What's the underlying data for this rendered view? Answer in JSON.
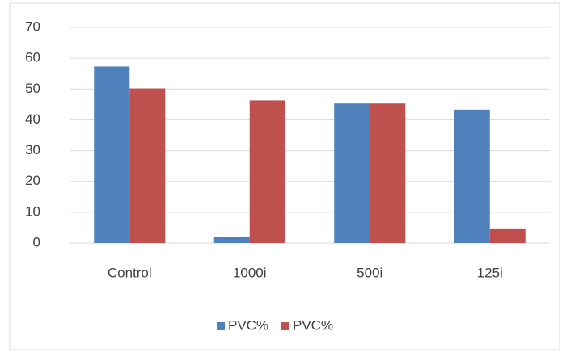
{
  "chart_data": {
    "type": "bar",
    "categories": [
      "Control",
      "1000i",
      "500i",
      "125i"
    ],
    "series": [
      {
        "name": "PVC%",
        "color": "#4f81bd",
        "values": [
          57.3,
          2,
          45.3,
          43.3
        ]
      },
      {
        "name": "PVC%",
        "color": "#c0504d",
        "values": [
          50.2,
          46.3,
          45.3,
          4.5
        ]
      }
    ],
    "ylim": [
      0,
      70
    ],
    "yticks": [
      0,
      10,
      20,
      30,
      40,
      50,
      60,
      70
    ],
    "grid": true,
    "legend": "bottom"
  }
}
